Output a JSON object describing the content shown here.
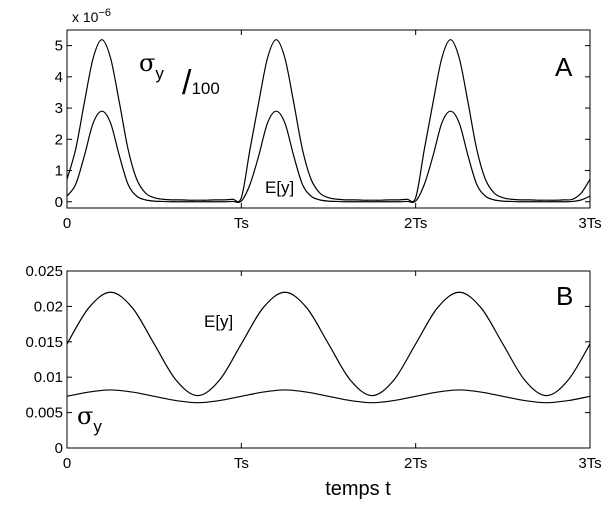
{
  "chart_data": [
    {
      "panel": "A",
      "type": "line",
      "multiplier_label": {
        "base": "x 10",
        "exponent": "−6"
      },
      "xlabel": "",
      "ylabel": "",
      "x_ticks": [
        "0",
        "Ts",
        "2Ts",
        "3Ts"
      ],
      "y_ticks": [
        "0",
        "1",
        "2",
        "3",
        "4",
        "5"
      ],
      "xlim_periods": [
        0,
        3
      ],
      "ylim": [
        -0.2,
        5.5
      ],
      "grid": false,
      "series": [
        {
          "name": "σy",
          "note": "/100",
          "x": [
            0,
            0.05,
            0.1,
            0.15,
            0.2,
            0.25,
            0.3,
            0.35,
            0.4,
            0.45,
            0.5,
            0.55,
            0.6,
            0.65,
            0.7,
            0.75,
            0.8,
            0.85,
            0.9,
            0.95,
            1.0,
            1.05,
            1.1,
            1.15,
            1.2,
            1.25,
            1.3,
            1.35,
            1.4,
            1.45,
            1.5,
            1.55,
            1.6,
            1.65,
            1.7,
            1.75,
            1.8,
            1.85,
            1.9,
            1.95,
            2.0,
            2.05,
            2.1,
            2.15,
            2.2,
            2.25,
            2.3,
            2.35,
            2.4,
            2.45,
            2.5,
            2.55,
            2.6,
            2.65,
            2.7,
            2.75,
            2.8,
            2.85,
            2.9,
            2.95,
            3.0
          ],
          "y": [
            0.72,
            1.69,
            3.19,
            4.6,
            5.19,
            4.6,
            3.19,
            1.69,
            0.72,
            0.28,
            0.13,
            0.08,
            0.06,
            0.06,
            0.05,
            0.05,
            0.05,
            0.06,
            0.06,
            0.08,
            0.13,
            1.69,
            3.19,
            4.6,
            5.19,
            4.6,
            3.19,
            1.69,
            0.72,
            0.28,
            0.13,
            0.08,
            0.06,
            0.06,
            0.05,
            0.05,
            0.05,
            0.06,
            0.06,
            0.08,
            0.13,
            1.69,
            3.19,
            4.6,
            5.19,
            4.6,
            3.19,
            1.69,
            0.72,
            0.28,
            0.13,
            0.08,
            0.06,
            0.06,
            0.05,
            0.05,
            0.05,
            0.06,
            0.08,
            0.28,
            0.72
          ]
        },
        {
          "name": "E[y]",
          "x": [
            0,
            0.05,
            0.1,
            0.15,
            0.2,
            0.25,
            0.3,
            0.35,
            0.4,
            0.45,
            0.5,
            0.55,
            0.6,
            0.65,
            0.7,
            0.75,
            0.8,
            0.85,
            0.9,
            0.95,
            1.0,
            1.05,
            1.1,
            1.15,
            1.2,
            1.25,
            1.3,
            1.35,
            1.4,
            1.45,
            1.5,
            1.55,
            1.6,
            1.65,
            1.7,
            1.75,
            1.8,
            1.85,
            1.9,
            1.95,
            2.0,
            2.05,
            2.1,
            2.15,
            2.2,
            2.25,
            2.3,
            2.35,
            2.4,
            2.45,
            2.5,
            2.55,
            2.6,
            2.65,
            2.7,
            2.75,
            2.8,
            2.85,
            2.9,
            2.95,
            3.0
          ],
          "y": [
            0.18,
            0.56,
            1.48,
            2.52,
            2.9,
            2.52,
            1.48,
            0.56,
            0.18,
            0.06,
            0.02,
            0.01,
            0.0,
            0.0,
            0.0,
            0.0,
            0.0,
            0.0,
            0.0,
            0.01,
            0.02,
            0.56,
            1.48,
            2.52,
            2.9,
            2.52,
            1.48,
            0.56,
            0.18,
            0.06,
            0.02,
            0.01,
            0.0,
            0.0,
            0.0,
            0.0,
            0.0,
            0.0,
            0.0,
            0.01,
            0.02,
            0.56,
            1.48,
            2.52,
            2.9,
            2.52,
            1.48,
            0.56,
            0.18,
            0.06,
            0.02,
            0.01,
            0.0,
            0.0,
            0.0,
            0.0,
            0.0,
            0.0,
            0.01,
            0.06,
            0.18
          ]
        }
      ]
    },
    {
      "panel": "B",
      "type": "line",
      "xlabel": "temps t",
      "ylabel": "",
      "x_ticks": [
        "0",
        "Ts",
        "2Ts",
        "3Ts"
      ],
      "y_ticks": [
        "0",
        "0.005",
        "0.01",
        "0.015",
        "0.02",
        "0.025"
      ],
      "xlim_periods": [
        0,
        3
      ],
      "ylim": [
        0,
        0.025
      ],
      "grid": false,
      "series": [
        {
          "name": "E[y]",
          "x": [
            0,
            0.125,
            0.25,
            0.375,
            0.5,
            0.625,
            0.75,
            0.875,
            1.0,
            1.125,
            1.25,
            1.375,
            1.5,
            1.625,
            1.75,
            1.875,
            2.0,
            2.125,
            2.25,
            2.375,
            2.5,
            2.625,
            2.75,
            2.875,
            3.0
          ],
          "y": [
            0.0147,
            0.0198,
            0.022,
            0.0198,
            0.0147,
            0.0096,
            0.0074,
            0.0096,
            0.0147,
            0.0198,
            0.022,
            0.0198,
            0.0147,
            0.0096,
            0.0074,
            0.0096,
            0.0147,
            0.0198,
            0.022,
            0.0198,
            0.0147,
            0.0096,
            0.0074,
            0.0096,
            0.0147
          ]
        },
        {
          "name": "σy",
          "x": [
            0,
            0.125,
            0.25,
            0.375,
            0.5,
            0.625,
            0.75,
            0.875,
            1.0,
            1.125,
            1.25,
            1.375,
            1.5,
            1.625,
            1.75,
            1.875,
            2.0,
            2.125,
            2.25,
            2.375,
            2.5,
            2.625,
            2.75,
            2.875,
            3.0
          ],
          "y": [
            0.0073,
            0.0079,
            0.0082,
            0.0079,
            0.0073,
            0.0067,
            0.0064,
            0.0067,
            0.0073,
            0.0079,
            0.0082,
            0.0079,
            0.0073,
            0.0067,
            0.0064,
            0.0067,
            0.0073,
            0.0079,
            0.0082,
            0.0079,
            0.0073,
            0.0067,
            0.0064,
            0.0067,
            0.0073
          ]
        }
      ]
    }
  ],
  "annotations": {
    "panel_a": {
      "letter": "A",
      "sigma": "σ",
      "sigma_sub": "y",
      "slash": "/",
      "scale": "100",
      "ey": "E[y]"
    },
    "panel_b": {
      "letter": "B",
      "sigma": "σ",
      "sigma_sub": "y",
      "ey": "E[y]"
    }
  }
}
